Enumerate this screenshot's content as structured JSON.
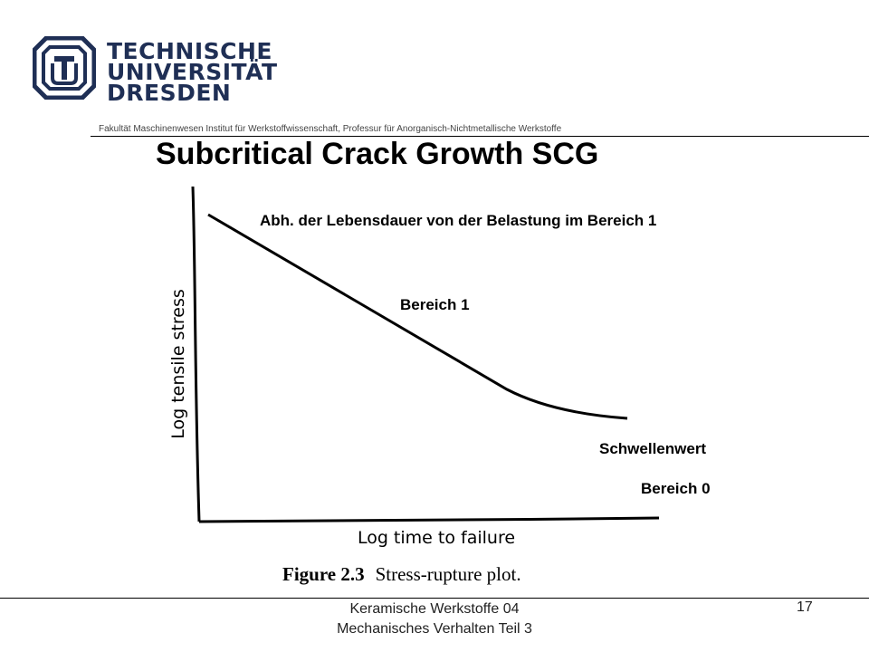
{
  "header": {
    "university_lines": [
      "TECHNISCHE",
      "UNIVERSITÄT",
      "DRESDEN"
    ],
    "faculty": "Fakultät Maschinenwesen Institut für Werkstoffwissenschaft, Professur für Anorganisch-Nichtmetallische Werkstoffe",
    "brand_color": "#1f2f55"
  },
  "slide": {
    "title": "Subcritical Crack Growth SCG",
    "annotations": {
      "lebensdauer": "Abh. der Lebensdauer von der Belastung im Bereich 1",
      "bereich1": "Bereich 1",
      "schwellenwert": "Schwellenwert",
      "bereich0": "Bereich 0"
    },
    "figure": {
      "number": "Figure 2.3",
      "caption": "Stress-rupture plot.",
      "xlabel": "Log time to failure",
      "ylabel": "Log tensile stress"
    }
  },
  "footer": {
    "line1": "Keramische Werkstoffe 04",
    "line2": "Mechanisches Verhalten Teil 3",
    "page": "17"
  }
}
